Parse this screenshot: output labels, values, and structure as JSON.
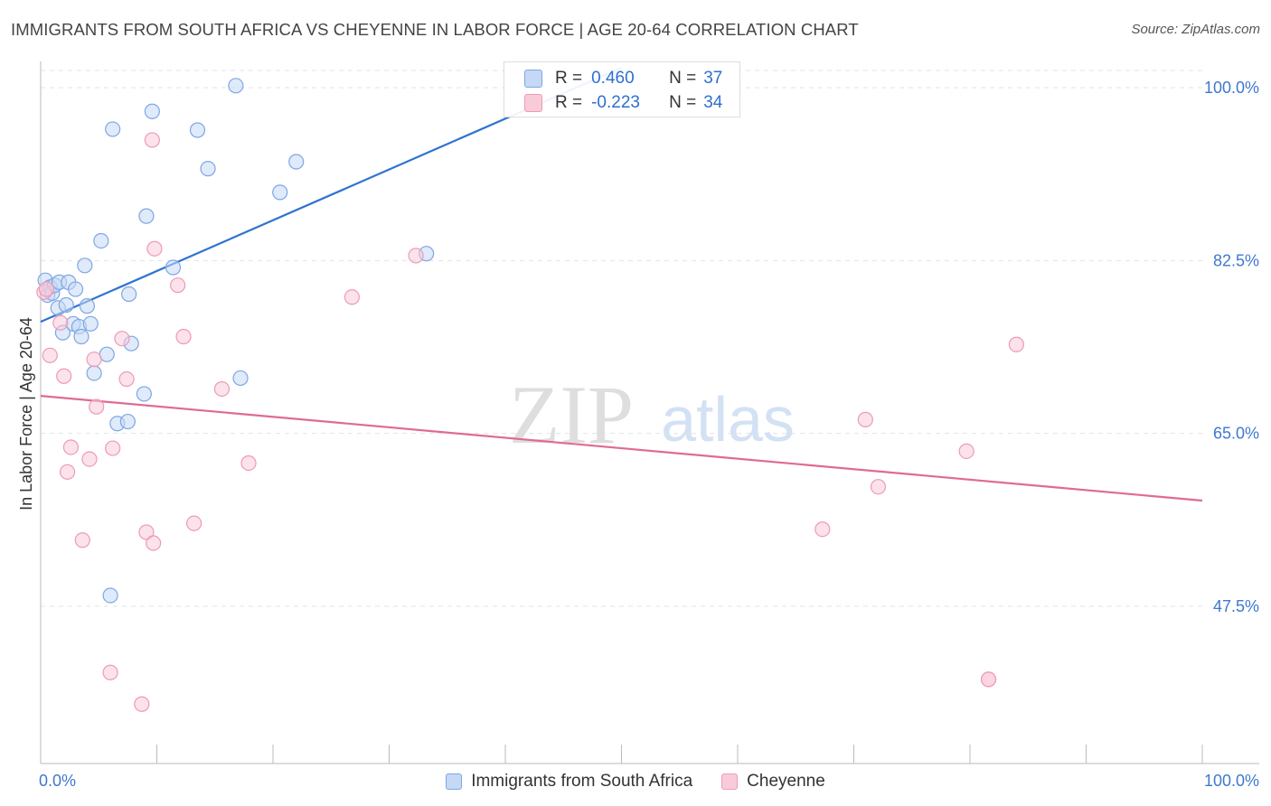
{
  "title": "IMMIGRANTS FROM SOUTH AFRICA VS CHEYENNE IN LABOR FORCE | AGE 20-64 CORRELATION CHART",
  "source": "Source: ZipAtlas.com",
  "watermark": {
    "zip": "ZIP",
    "atlas": "atlas"
  },
  "stats": {
    "r_label": "R =",
    "n_label": "N =",
    "series1": {
      "r": "0.460",
      "n": "37"
    },
    "series2": {
      "r": "-0.223",
      "n": "34"
    }
  },
  "colors": {
    "blue_fill": "#c5d8f6",
    "blue_stroke": "#7fa6e3",
    "blue_line": "#2f74d0",
    "pink_fill": "#f9cbd9",
    "pink_stroke": "#ee9ab6",
    "pink_line": "#e06a95",
    "tick_label": "#3f78cf"
  },
  "chart_data": {
    "type": "scatter",
    "title": "IMMIGRANTS FROM SOUTH AFRICA VS CHEYENNE IN LABOR FORCE | AGE 20-64 CORRELATION CHART",
    "xlabel": "",
    "ylabel": "In Labor Force | Age 20-64",
    "xlim": [
      0,
      100
    ],
    "ylim": [
      32.5,
      103.0
    ],
    "x_tick_labels": {
      "min": "0.0%",
      "max": "100.0%"
    },
    "y_ticks": [
      47.5,
      65.0,
      82.5,
      100.0
    ],
    "y_tick_labels": [
      "47.5%",
      "65.0%",
      "82.5%",
      "100.0%"
    ],
    "grid": true,
    "legend_position": "bottom-center",
    "series": [
      {
        "name": "Immigrants from South Africa",
        "color": "#7fa6e3",
        "r": 0.46,
        "n": 37,
        "trend": {
          "x": [
            0,
            50
          ],
          "y": [
            76.3,
            102.0
          ]
        },
        "points": [
          {
            "x": 0.4,
            "y": 80.5
          },
          {
            "x": 0.6,
            "y": 79.0
          },
          {
            "x": 0.8,
            "y": 79.8
          },
          {
            "x": 1.0,
            "y": 79.2
          },
          {
            "x": 1.2,
            "y": 80.0
          },
          {
            "x": 1.5,
            "y": 77.7
          },
          {
            "x": 1.6,
            "y": 80.3
          },
          {
            "x": 1.9,
            "y": 75.2
          },
          {
            "x": 2.2,
            "y": 78.0
          },
          {
            "x": 2.4,
            "y": 80.3
          },
          {
            "x": 2.8,
            "y": 76.1
          },
          {
            "x": 3.0,
            "y": 79.6
          },
          {
            "x": 3.3,
            "y": 75.8
          },
          {
            "x": 3.5,
            "y": 74.8
          },
          {
            "x": 3.8,
            "y": 82.0
          },
          {
            "x": 4.0,
            "y": 77.9
          },
          {
            "x": 4.3,
            "y": 76.1
          },
          {
            "x": 4.6,
            "y": 71.1
          },
          {
            "x": 5.2,
            "y": 84.5
          },
          {
            "x": 5.7,
            "y": 73.0
          },
          {
            "x": 6.0,
            "y": 48.6
          },
          {
            "x": 6.2,
            "y": 95.8
          },
          {
            "x": 6.6,
            "y": 66.0
          },
          {
            "x": 7.5,
            "y": 66.2
          },
          {
            "x": 7.6,
            "y": 79.1
          },
          {
            "x": 7.8,
            "y": 74.1
          },
          {
            "x": 8.9,
            "y": 69.0
          },
          {
            "x": 9.1,
            "y": 87.0
          },
          {
            "x": 9.6,
            "y": 97.6
          },
          {
            "x": 11.4,
            "y": 81.8
          },
          {
            "x": 13.5,
            "y": 95.7
          },
          {
            "x": 14.4,
            "y": 91.8
          },
          {
            "x": 16.8,
            "y": 100.2
          },
          {
            "x": 17.2,
            "y": 70.6
          },
          {
            "x": 20.6,
            "y": 89.4
          },
          {
            "x": 22.0,
            "y": 92.5
          },
          {
            "x": 33.2,
            "y": 83.2
          }
        ]
      },
      {
        "name": "Cheyenne",
        "color": "#ee9ab6",
        "r": -0.223,
        "n": 34,
        "trend": {
          "x": [
            0,
            100
          ],
          "y": [
            68.8,
            58.2
          ]
        },
        "points": [
          {
            "x": 0.3,
            "y": 79.3
          },
          {
            "x": 0.5,
            "y": 79.6
          },
          {
            "x": 0.8,
            "y": 72.9
          },
          {
            "x": 1.7,
            "y": 76.2
          },
          {
            "x": 2.0,
            "y": 70.8
          },
          {
            "x": 2.3,
            "y": 61.1
          },
          {
            "x": 2.6,
            "y": 63.6
          },
          {
            "x": 3.6,
            "y": 54.2
          },
          {
            "x": 4.2,
            "y": 62.4
          },
          {
            "x": 4.6,
            "y": 72.5
          },
          {
            "x": 4.8,
            "y": 67.7
          },
          {
            "x": 6.0,
            "y": 40.8
          },
          {
            "x": 6.2,
            "y": 63.5
          },
          {
            "x": 7.0,
            "y": 74.6
          },
          {
            "x": 7.4,
            "y": 70.5
          },
          {
            "x": 8.7,
            "y": 37.6
          },
          {
            "x": 9.1,
            "y": 55.0
          },
          {
            "x": 9.6,
            "y": 94.7
          },
          {
            "x": 9.7,
            "y": 53.9
          },
          {
            "x": 9.8,
            "y": 83.7
          },
          {
            "x": 11.8,
            "y": 80.0
          },
          {
            "x": 12.3,
            "y": 74.8
          },
          {
            "x": 13.2,
            "y": 55.9
          },
          {
            "x": 15.6,
            "y": 69.5
          },
          {
            "x": 17.9,
            "y": 62.0
          },
          {
            "x": 26.8,
            "y": 78.8
          },
          {
            "x": 32.3,
            "y": 83.0
          },
          {
            "x": 67.3,
            "y": 55.3
          },
          {
            "x": 71.0,
            "y": 66.4
          },
          {
            "x": 72.1,
            "y": 59.6
          },
          {
            "x": 79.7,
            "y": 63.2
          },
          {
            "x": 81.6,
            "y": 40.1
          },
          {
            "x": 84.0,
            "y": 74.0
          },
          {
            "x": 81.6,
            "y": 40.1
          }
        ]
      }
    ]
  },
  "legend": {
    "items": [
      "Immigrants from South Africa",
      "Cheyenne"
    ]
  }
}
